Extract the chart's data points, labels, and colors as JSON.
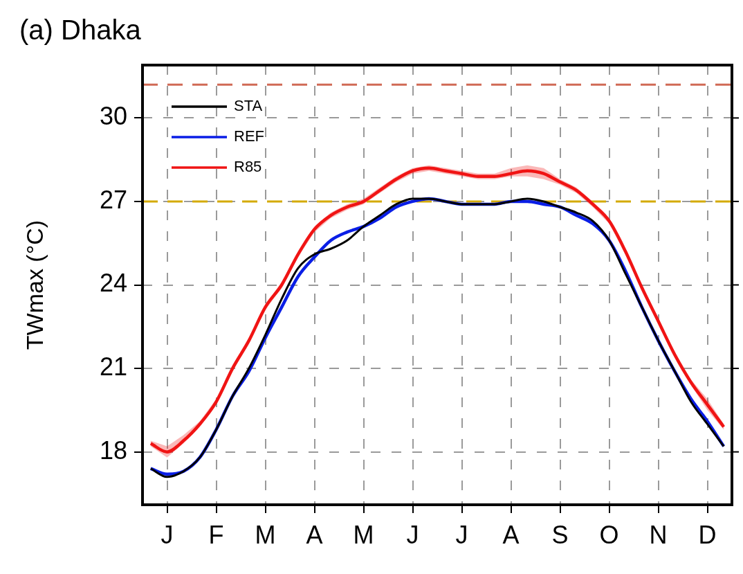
{
  "chart_data": {
    "type": "line",
    "title": "(a) Dhaka",
    "ylabel": "TWmax (°C)",
    "categories": [
      null,
      "J",
      null,
      null,
      "F",
      null,
      null,
      "M",
      null,
      null,
      "A",
      null,
      null,
      "M",
      null,
      null,
      "J",
      null,
      null,
      "J",
      null,
      null,
      "A",
      null,
      null,
      "S",
      null,
      null,
      "O",
      null,
      null,
      "N",
      null,
      null,
      "D",
      null
    ],
    "series": [
      {
        "name": "STA",
        "color": "#000000",
        "values": [
          17.4,
          17.1,
          17.3,
          17.8,
          18.8,
          20.0,
          21.0,
          22.2,
          23.5,
          24.6,
          25.1,
          25.3,
          25.6,
          26.1,
          26.5,
          26.9,
          27.1,
          27.1,
          27.0,
          26.9,
          26.9,
          26.9,
          27.0,
          27.1,
          27.0,
          26.8,
          26.6,
          26.3,
          25.6,
          24.4,
          23.2,
          22.0,
          20.9,
          19.8,
          19.0,
          18.2
        ]
      },
      {
        "name": "REF",
        "color": "#0a1ee6",
        "values": [
          17.4,
          17.2,
          17.3,
          17.8,
          18.8,
          20.0,
          20.9,
          22.1,
          23.2,
          24.3,
          25.0,
          25.6,
          25.9,
          26.1,
          26.4,
          26.8,
          27.0,
          27.1,
          27.0,
          26.9,
          26.9,
          26.9,
          27.0,
          27.0,
          26.9,
          26.8,
          26.5,
          26.2,
          25.6,
          24.5,
          23.2,
          22.0,
          20.9,
          19.9,
          19.1,
          18.2
        ]
      },
      {
        "name": "R85",
        "color": "#f01414",
        "values": [
          18.3,
          18.0,
          18.4,
          19.0,
          19.8,
          21.0,
          22.0,
          23.2,
          24.0,
          25.1,
          26.0,
          26.5,
          26.8,
          27.0,
          27.4,
          27.8,
          28.1,
          28.2,
          28.1,
          28.0,
          27.9,
          27.9,
          28.0,
          28.1,
          28.0,
          27.7,
          27.4,
          26.9,
          26.3,
          25.2,
          23.9,
          22.7,
          21.5,
          20.5,
          19.7,
          18.9
        ],
        "lower": [
          18.2,
          17.8,
          18.3,
          18.9,
          19.7,
          20.9,
          21.9,
          23.1,
          23.9,
          25.0,
          25.9,
          26.4,
          26.7,
          26.9,
          27.3,
          27.7,
          28.0,
          28.1,
          28.0,
          27.9,
          27.8,
          27.8,
          27.9,
          27.9,
          27.8,
          27.6,
          27.3,
          26.8,
          26.2,
          25.1,
          23.8,
          22.6,
          21.4,
          20.4,
          19.5,
          18.8
        ],
        "upper": [
          18.4,
          18.2,
          18.6,
          19.1,
          19.9,
          21.1,
          22.1,
          23.3,
          24.1,
          25.2,
          26.1,
          26.6,
          26.9,
          27.1,
          27.5,
          27.9,
          28.2,
          28.3,
          28.2,
          28.1,
          28.0,
          28.0,
          28.2,
          28.3,
          28.2,
          27.8,
          27.5,
          27.0,
          26.4,
          25.3,
          24.0,
          22.8,
          21.6,
          20.6,
          19.9,
          19.0
        ]
      }
    ],
    "ylim": [
      16.1,
      31.9
    ],
    "yticks": [
      18,
      21,
      24,
      27,
      30
    ],
    "ref_lines": [
      {
        "axis": "y",
        "value": 27,
        "color": "#d4aa00",
        "line_style": "dashed"
      },
      {
        "axis": "y",
        "value": 31.2,
        "color": "#d06a55",
        "line_style": "dashed"
      }
    ],
    "grid": true,
    "legend": "top left",
    "marker": "none",
    "line_style": "solid"
  }
}
